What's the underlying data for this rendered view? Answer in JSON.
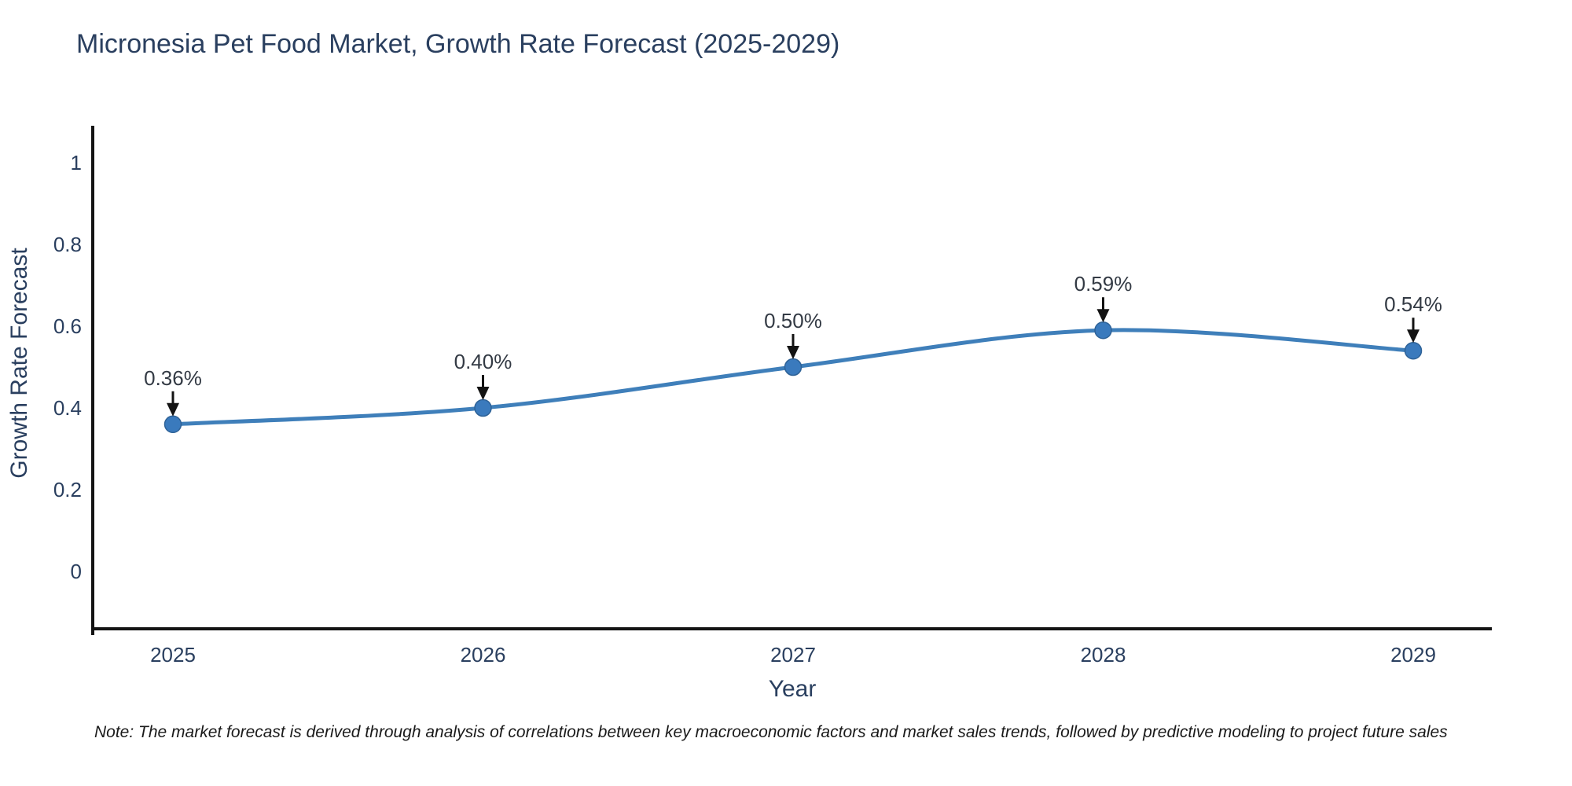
{
  "title": "Micronesia Pet Food Market, Growth Rate Forecast (2025-2029)",
  "note": "Note: The market forecast is derived through analysis of correlations between key macroeconomic factors and market sales trends, followed by predictive modeling to project future sales",
  "chart_data": {
    "type": "line",
    "title": "Micronesia Pet Food Market, Growth Rate Forecast (2025-2029)",
    "xlabel": "Year",
    "ylabel": "Growth Rate Forecast",
    "x": [
      2025,
      2026,
      2027,
      2028,
      2029
    ],
    "values": [
      0.36,
      0.4,
      0.5,
      0.59,
      0.54
    ],
    "point_labels": [
      "0.36%",
      "0.40%",
      "0.50%",
      "0.59%",
      "0.54%"
    ],
    "yticks": [
      0,
      0.2,
      0.4,
      0.6,
      0.8,
      1
    ],
    "ytick_labels": [
      "0",
      "0.2",
      "0.4",
      "0.6",
      "0.8",
      "1"
    ],
    "xtick_labels": [
      "2025",
      "2026",
      "2027",
      "2028",
      "2029"
    ],
    "ylim": [
      -0.14,
      1.1
    ],
    "xlim": [
      2024.74,
      2029.26
    ],
    "grid": false,
    "legend": false,
    "line_shape": "spline",
    "marker": "circle",
    "annotation_arrows": true,
    "colors": {
      "line": "#3f7fba",
      "marker": "#3a7abd",
      "marker_edge": "#2e6297",
      "arrow": "#131313",
      "axis": "#131313",
      "title_text": "#2a3f5f",
      "tick_text": "#2a3f5f",
      "axis_title_text": "#2a3f5f",
      "annotation_text": "#333a44",
      "note_text": "#1a1a1a",
      "background": "#ffffff"
    }
  }
}
